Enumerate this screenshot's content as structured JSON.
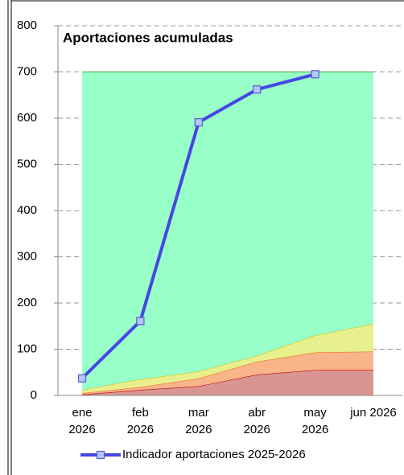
{
  "chart_data": {
    "type": "area",
    "title": "Aportaciones acumuladas",
    "categories": [
      "ene 2026",
      "feb 2026",
      "mar 2026",
      "abr 2026",
      "may 2026",
      "jun 2026"
    ],
    "series": [
      {
        "type": "area",
        "color": "#d99594",
        "line_color": "#c00000",
        "values": [
          2,
          12,
          20,
          45,
          55,
          55
        ]
      },
      {
        "type": "area",
        "color": "#f8b58a",
        "line_color": "#f07020",
        "values": [
          3,
          6,
          17,
          28,
          38,
          40
        ]
      },
      {
        "type": "area",
        "color": "#e8f08e",
        "line_color": "#c8c820",
        "values": [
          7,
          17,
          15,
          13,
          37,
          60
        ]
      },
      {
        "type": "area",
        "color": "#99ffc8",
        "line_color": "#55bb55",
        "values": [
          688,
          665,
          648,
          614,
          570,
          545
        ]
      },
      {
        "type": "line",
        "name": "Indicador aportaciones 2025-2026",
        "color": "#4646e6",
        "marker_color": "#b4c8ff",
        "values": [
          37,
          161,
          591,
          662,
          695,
          null
        ]
      }
    ],
    "ylim": [
      0,
      800
    ],
    "yticks": [
      0,
      100,
      200,
      300,
      400,
      500,
      600,
      700,
      800
    ],
    "grid": true,
    "legend": "bottom"
  }
}
